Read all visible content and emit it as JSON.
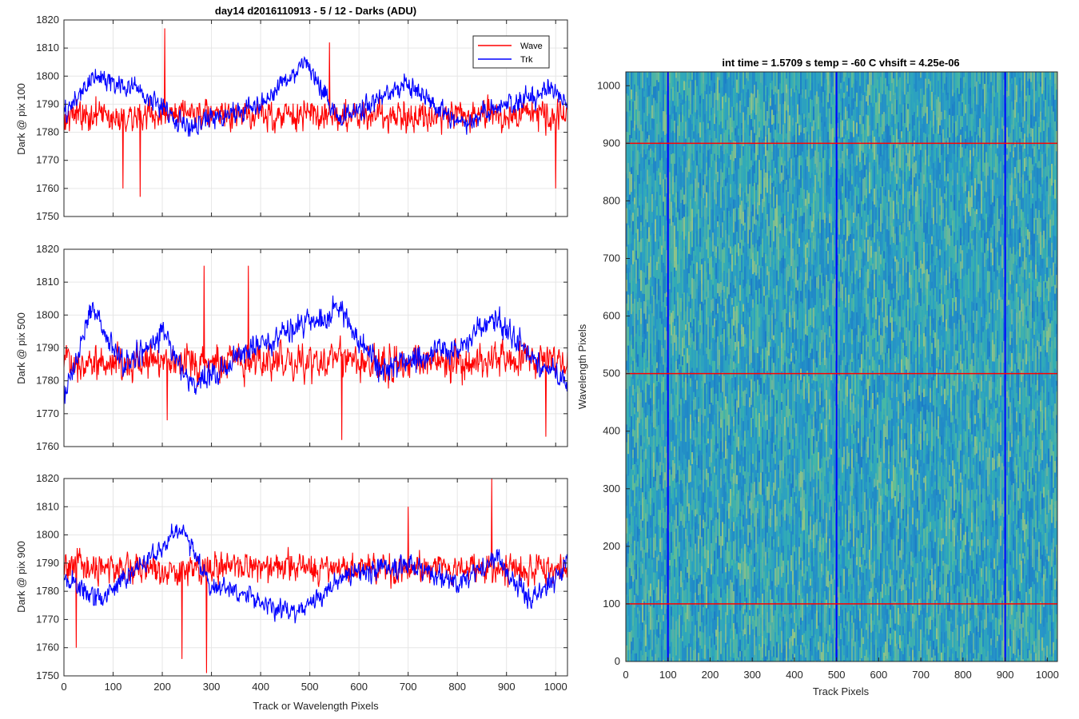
{
  "figure_title": "day14 d2016110913 - 5 / 12 - Darks (ADU)",
  "shared_xlabel": "Track or Wavelength Pixels",
  "legend": [
    "Wave",
    "Trk"
  ],
  "colors": {
    "wave": "#ff0000",
    "trk": "#0000ff",
    "grid": "#e6e6e6",
    "axis": "#262626",
    "image_base": "#2a9fc4"
  },
  "chart_data": [
    {
      "type": "line",
      "ylabel": "Dark @ pix 100",
      "xlim": [
        0,
        1024
      ],
      "ylim": [
        1750,
        1820
      ],
      "xticks": [
        0,
        100,
        200,
        300,
        400,
        500,
        600,
        700,
        800,
        900,
        1000
      ],
      "yticks": [
        1750,
        1760,
        1770,
        1780,
        1790,
        1800,
        1810,
        1820
      ],
      "grid": true,
      "legend_location": "top-right",
      "series": [
        {
          "name": "Wave",
          "color": "#ff0000",
          "mean": 1786,
          "noise": 5.5,
          "spikes": [
            [
              205,
              1817
            ],
            [
              155,
              1757
            ],
            [
              120,
              1760
            ],
            [
              1000,
              1760
            ],
            [
              540,
              1812
            ]
          ]
        },
        {
          "name": "Trk",
          "color": "#0000ff",
          "mean": 1788,
          "noise": 4,
          "drift": [
            [
              0,
              1786
            ],
            [
              60,
              1800
            ],
            [
              150,
              1795
            ],
            [
              250,
              1782
            ],
            [
              400,
              1790
            ],
            [
              490,
              1805
            ],
            [
              560,
              1785
            ],
            [
              700,
              1797
            ],
            [
              800,
              1783
            ],
            [
              900,
              1790
            ],
            [
              1000,
              1795
            ],
            [
              1024,
              1790
            ]
          ]
        }
      ]
    },
    {
      "type": "line",
      "ylabel": "Dark @ pix 500",
      "xlim": [
        0,
        1024
      ],
      "ylim": [
        1760,
        1820
      ],
      "xticks": [
        0,
        100,
        200,
        300,
        400,
        500,
        600,
        700,
        800,
        900,
        1000
      ],
      "yticks": [
        1760,
        1770,
        1780,
        1790,
        1800,
        1810,
        1820
      ],
      "grid": true,
      "series": [
        {
          "name": "Wave",
          "color": "#ff0000",
          "mean": 1786,
          "noise": 5.5,
          "spikes": [
            [
              285,
              1815
            ],
            [
              375,
              1815
            ],
            [
              565,
              1762
            ],
            [
              980,
              1763
            ],
            [
              210,
              1768
            ]
          ]
        },
        {
          "name": "Trk",
          "color": "#0000ff",
          "mean": 1786,
          "noise": 4,
          "drift": [
            [
              0,
              1775
            ],
            [
              60,
              1803
            ],
            [
              120,
              1784
            ],
            [
              200,
              1795
            ],
            [
              260,
              1778
            ],
            [
              400,
              1792
            ],
            [
              560,
              1802
            ],
            [
              640,
              1784
            ],
            [
              800,
              1790
            ],
            [
              880,
              1799
            ],
            [
              960,
              1785
            ],
            [
              1024,
              1780
            ]
          ]
        }
      ]
    },
    {
      "type": "line",
      "ylabel": "Dark @ pix 900",
      "xlim": [
        0,
        1024
      ],
      "ylim": [
        1750,
        1820
      ],
      "xticks": [
        0,
        100,
        200,
        300,
        400,
        500,
        600,
        700,
        800,
        900,
        1000
      ],
      "yticks": [
        1750,
        1760,
        1770,
        1780,
        1790,
        1800,
        1810,
        1820
      ],
      "grid": true,
      "series": [
        {
          "name": "Wave",
          "color": "#ff0000",
          "mean": 1788,
          "noise": 5.5,
          "spikes": [
            [
              290,
              1751
            ],
            [
              870,
              1820
            ],
            [
              240,
              1756
            ],
            [
              25,
              1760
            ],
            [
              700,
              1810
            ]
          ]
        },
        {
          "name": "Trk",
          "color": "#0000ff",
          "mean": 1785,
          "noise": 4,
          "drift": [
            [
              0,
              1785
            ],
            [
              70,
              1777
            ],
            [
              200,
              1795
            ],
            [
              240,
              1803
            ],
            [
              300,
              1782
            ],
            [
              480,
              1772
            ],
            [
              560,
              1785
            ],
            [
              700,
              1790
            ],
            [
              800,
              1782
            ],
            [
              880,
              1792
            ],
            [
              950,
              1776
            ],
            [
              1024,
              1790
            ]
          ]
        }
      ]
    },
    {
      "type": "heatmap",
      "title": "int time = 1.5709 s   temp = -60 C   vhsift = 4.25e-06",
      "xlabel": "Track Pixels",
      "ylabel": "Wavelength Pixels",
      "xlim": [
        0,
        1024
      ],
      "ylim": [
        0,
        1024
      ],
      "xticks": [
        0,
        100,
        200,
        300,
        400,
        500,
        600,
        700,
        800,
        900,
        1000
      ],
      "yticks": [
        0,
        100,
        200,
        300,
        400,
        500,
        600,
        700,
        800,
        900,
        1000
      ],
      "vlines": {
        "color": "#0000ff",
        "x": [
          100,
          500,
          900
        ]
      },
      "hlines": {
        "color": "#ff0000",
        "y": [
          100,
          500,
          900
        ]
      }
    }
  ]
}
